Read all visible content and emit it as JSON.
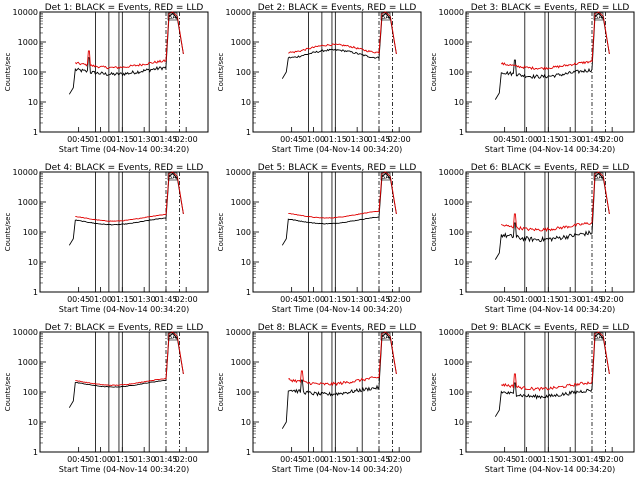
{
  "chart_data": [
    {
      "type": "line",
      "title": "Det 1: BLACK = Events, RED = LLD",
      "xlabel": "Start Time (04-Nov-14 00:34:20)",
      "ylabel": "Counts/sec",
      "yscale": "log",
      "ylim": [
        1,
        10000
      ],
      "x_ticks": [
        "00:45",
        "01:00",
        "01:15",
        "01:30",
        "01:45",
        "02:00"
      ],
      "series": [
        {
          "color": "#000000",
          "shape": "flat",
          "base": 120,
          "noise": 0.12,
          "start_minute": 3,
          "early": 30,
          "spike": [
            8,
            300
          ]
        },
        {
          "color": "#e00000",
          "shape": "flat",
          "base": 200,
          "noise": 0.08,
          "start_minute": 3,
          "spike": [
            8,
            500
          ]
        }
      ],
      "solid_markers": [
        9,
        13,
        16,
        17,
        25
      ],
      "dashdot_markers": [
        30,
        34
      ],
      "saa_label": "SA"
    },
    {
      "type": "line",
      "title": "Det 2: BLACK = Events, RED = LLD",
      "xlabel": "Start Time (04-Nov-14 00:34:20)",
      "ylabel": "Counts/sec",
      "yscale": "log",
      "ylim": [
        1,
        10000
      ],
      "x_ticks": [
        "00:45",
        "01:00",
        "01:15",
        "01:30",
        "01:45",
        "02:00"
      ],
      "series": [
        {
          "color": "#000000",
          "shape": "hump",
          "base": 300,
          "noise": 0.06,
          "start_minute": 3,
          "early": 100
        },
        {
          "color": "#e00000",
          "shape": "hump",
          "base": 450,
          "noise": 0.06,
          "start_minute": 3
        }
      ],
      "solid_markers": [
        9,
        13,
        16,
        17,
        25
      ],
      "dashdot_markers": [
        30,
        34
      ],
      "saa_label": "SA"
    },
    {
      "type": "line",
      "title": "Det 3: BLACK = Events, RED = LLD",
      "xlabel": "Start Time (04-Nov-14 00:34:20)",
      "ylabel": "Counts/sec",
      "yscale": "log",
      "ylim": [
        1,
        10000
      ],
      "x_ticks": [
        "00:45",
        "01:00",
        "01:15",
        "01:30",
        "01:45",
        "02:00"
      ],
      "series": [
        {
          "color": "#000000",
          "shape": "flat",
          "base": 100,
          "noise": 0.12,
          "start_minute": 3,
          "early": 20,
          "spike": [
            9,
            250
          ]
        },
        {
          "color": "#e00000",
          "shape": "flat",
          "base": 190,
          "noise": 0.08,
          "start_minute": 3
        }
      ],
      "solid_markers": [
        10,
        16,
        17,
        25
      ],
      "dashdot_markers": [
        30,
        34
      ],
      "saa_label": "SA"
    },
    {
      "type": "line",
      "title": "Det 4: BLACK = Events, RED = LLD",
      "xlabel": "Start Time (04-Nov-14 00:34:20)",
      "ylabel": "Counts/sec",
      "yscale": "log",
      "ylim": [
        1,
        10000
      ],
      "x_ticks": [
        "00:45",
        "01:00",
        "01:15",
        "01:30",
        "01:45",
        "02:00"
      ],
      "series": [
        {
          "color": "#000000",
          "shape": "flat",
          "base": 250,
          "noise": 0.02,
          "start_minute": 3,
          "early": 60
        },
        {
          "color": "#e00000",
          "shape": "flat",
          "base": 330,
          "noise": 0.02,
          "start_minute": 3
        }
      ],
      "solid_markers": [
        9,
        13,
        16,
        17,
        25
      ],
      "dashdot_markers": [
        30,
        34
      ],
      "saa_label": "SA"
    },
    {
      "type": "line",
      "title": "Det 5: BLACK = Events, RED = LLD",
      "xlabel": "Start Time (04-Nov-14 00:34:20)",
      "ylabel": "Counts/sec",
      "yscale": "log",
      "ylim": [
        1,
        10000
      ],
      "x_ticks": [
        "00:45",
        "01:00",
        "01:15",
        "01:30",
        "01:45",
        "02:00"
      ],
      "series": [
        {
          "color": "#000000",
          "shape": "flat",
          "base": 270,
          "noise": 0.02,
          "start_minute": 3,
          "early": 60
        },
        {
          "color": "#e00000",
          "shape": "flat",
          "base": 420,
          "noise": 0.02,
          "start_minute": 3
        }
      ],
      "solid_markers": [
        9,
        13,
        16,
        17,
        25
      ],
      "dashdot_markers": [
        30,
        34
      ],
      "saa_label": "SA"
    },
    {
      "type": "line",
      "title": "Det 6: BLACK = Events, RED = LLD",
      "xlabel": "Start Time (04-Nov-14 00:34:20)",
      "ylabel": "Counts/sec",
      "yscale": "log",
      "ylim": [
        1,
        10000
      ],
      "x_ticks": [
        "00:45",
        "01:00",
        "01:15",
        "01:30",
        "01:45",
        "02:00"
      ],
      "series": [
        {
          "color": "#000000",
          "shape": "flat",
          "base": 80,
          "noise": 0.15,
          "start_minute": 3,
          "early": 20,
          "spike": [
            8,
            200
          ]
        },
        {
          "color": "#e00000",
          "shape": "flat",
          "base": 170,
          "noise": 0.1,
          "start_minute": 3,
          "spike": [
            8,
            400
          ]
        }
      ],
      "solid_markers": [
        10,
        16,
        17,
        25
      ],
      "dashdot_markers": [
        30,
        34
      ],
      "saa_label": "SA"
    },
    {
      "type": "line",
      "title": "Det 7: BLACK = Events, RED = LLD",
      "xlabel": "Start Time (04-Nov-14 00:34:20)",
      "ylabel": "Counts/sec",
      "yscale": "log",
      "ylim": [
        1,
        10000
      ],
      "x_ticks": [
        "00:45",
        "01:00",
        "01:15",
        "01:30",
        "01:45",
        "02:00"
      ],
      "series": [
        {
          "color": "#000000",
          "shape": "flat",
          "base": 210,
          "noise": 0.02,
          "start_minute": 3,
          "early": 50
        },
        {
          "color": "#e00000",
          "shape": "flat",
          "base": 240,
          "noise": 0.02,
          "start_minute": 3
        }
      ],
      "solid_markers": [
        9,
        13,
        16,
        17,
        25
      ],
      "dashdot_markers": [
        30,
        34
      ],
      "saa_label": "SA"
    },
    {
      "type": "line",
      "title": "Det 8: BLACK = Events, RED = LLD",
      "xlabel": "Start Time (04-Nov-14 00:34:20)",
      "ylabel": "Counts/sec",
      "yscale": "log",
      "ylim": [
        1,
        10000
      ],
      "x_ticks": [
        "00:45",
        "01:00",
        "01:15",
        "01:30",
        "01:45",
        "02:00"
      ],
      "series": [
        {
          "color": "#000000",
          "shape": "flat",
          "base": 120,
          "noise": 0.12,
          "start_minute": 3,
          "early": 10,
          "spike": [
            8,
            250
          ]
        },
        {
          "color": "#e00000",
          "shape": "flat",
          "base": 260,
          "noise": 0.1,
          "start_minute": 3,
          "spike": [
            8,
            500
          ]
        }
      ],
      "solid_markers": [
        9,
        13,
        16,
        17,
        25
      ],
      "dashdot_markers": [
        30,
        34
      ],
      "saa_label": "SA"
    },
    {
      "type": "line",
      "title": "Det 9: BLACK = Events, RED = LLD",
      "xlabel": "Start Time (04-Nov-14 00:34:20)",
      "ylabel": "Counts/sec",
      "yscale": "log",
      "ylim": [
        1,
        10000
      ],
      "x_ticks": [
        "00:45",
        "01:00",
        "01:15",
        "01:30",
        "01:45",
        "02:00"
      ],
      "series": [
        {
          "color": "#000000",
          "shape": "flat",
          "base": 100,
          "noise": 0.12,
          "start_minute": 3,
          "early": 25,
          "spike": [
            9,
            200
          ]
        },
        {
          "color": "#e00000",
          "shape": "flat",
          "base": 180,
          "noise": 0.1,
          "start_minute": 3,
          "spike": [
            9,
            400
          ]
        }
      ],
      "solid_markers": [
        10,
        16,
        17,
        25
      ],
      "dashdot_markers": [
        30,
        34
      ],
      "saa_label": "SA"
    }
  ]
}
